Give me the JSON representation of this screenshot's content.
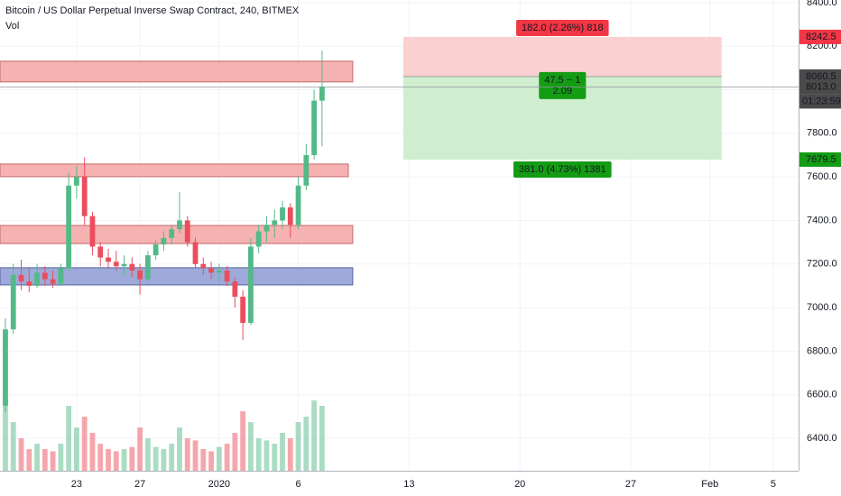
{
  "chart_data": {
    "type": "candlestick",
    "title": "Bitcoin / US Dollar Perpetual Inverse Swap Contract, 240, BITMEX",
    "volume_label": "Vol",
    "x": [
      -4.5,
      -4,
      -3.5,
      -3,
      -2.5,
      -2,
      -1.5,
      -1,
      -0.5,
      0,
      0.5,
      1,
      1.5,
      2,
      2.5,
      3,
      3.5,
      4,
      4.5,
      5,
      5.5,
      6,
      6.5,
      7,
      7.5,
      8,
      8.5,
      9,
      9.5,
      10,
      10.5,
      11,
      11.5,
      12,
      12.5,
      13,
      13.5,
      14,
      14.5,
      15,
      15.5
    ],
    "open": [
      6550,
      6900,
      7150,
      7120,
      7100,
      7160,
      7130,
      7110,
      7180,
      7560,
      7600,
      7420,
      7280,
      7230,
      7210,
      7190,
      7200,
      7170,
      7130,
      7240,
      7290,
      7320,
      7360,
      7400,
      7300,
      7200,
      7180,
      7160,
      7170,
      7120,
      7050,
      6930,
      7280,
      7350,
      7380,
      7400,
      7460,
      7380,
      7560,
      7700,
      7950
    ],
    "high": [
      6950,
      7200,
      7220,
      7180,
      7200,
      7190,
      7170,
      7200,
      7620,
      7650,
      7690,
      7440,
      7300,
      7270,
      7260,
      7240,
      7230,
      7200,
      7260,
      7310,
      7350,
      7380,
      7530,
      7420,
      7320,
      7230,
      7210,
      7200,
      7190,
      7140,
      7080,
      7320,
      7380,
      7420,
      7450,
      7490,
      7480,
      7600,
      7750,
      8000,
      8180
    ],
    "low": [
      6520,
      6880,
      7080,
      7070,
      7090,
      7100,
      7090,
      7100,
      7170,
      7500,
      7380,
      7240,
      7190,
      7180,
      7170,
      7150,
      7140,
      7060,
      7120,
      7220,
      7260,
      7290,
      7340,
      7280,
      7180,
      7150,
      7130,
      7120,
      7100,
      7000,
      6850,
      6920,
      7250,
      7300,
      7320,
      7360,
      7320,
      7360,
      7540,
      7680,
      7740
    ],
    "close": [
      6900,
      7150,
      7120,
      7100,
      7160,
      7130,
      7110,
      7180,
      7560,
      7600,
      7420,
      7280,
      7230,
      7210,
      7190,
      7200,
      7170,
      7130,
      7240,
      7290,
      7320,
      7360,
      7400,
      7300,
      7200,
      7180,
      7160,
      7170,
      7120,
      7050,
      6930,
      7280,
      7350,
      7380,
      7400,
      7460,
      7380,
      7560,
      7700,
      7950,
      8013
    ],
    "volume": [
      70,
      45,
      30,
      20,
      25,
      20,
      18,
      25,
      60,
      40,
      50,
      35,
      25,
      20,
      18,
      20,
      22,
      40,
      30,
      22,
      20,
      25,
      40,
      30,
      28,
      20,
      18,
      22,
      25,
      35,
      55,
      45,
      30,
      28,
      25,
      35,
      30,
      45,
      50,
      65,
      60
    ],
    "volume_ylim": [
      0,
      100
    ],
    "up_color": "#53b987",
    "down_color": "#eb4d5c",
    "xlim": [
      -4.84,
      45.6
    ],
    "ylim": [
      6251,
      8412
    ],
    "xticks": [
      {
        "value": 0,
        "label": "23"
      },
      {
        "value": 4,
        "label": "27"
      },
      {
        "value": 9,
        "label": "2020"
      },
      {
        "value": 14,
        "label": "6"
      },
      {
        "value": 21,
        "label": "13"
      },
      {
        "value": 28,
        "label": "20"
      },
      {
        "value": 35,
        "label": "27"
      },
      {
        "value": 40,
        "label": "Feb"
      },
      {
        "value": 44,
        "label": "5"
      }
    ],
    "yticks": [
      {
        "value": 8400,
        "label": "8400.0"
      },
      {
        "value": 8200,
        "label": "8200.0"
      },
      {
        "value": 8000,
        "label": "8000.0"
      },
      {
        "value": 7800,
        "label": "7800.0"
      },
      {
        "value": 7600,
        "label": "7600.0"
      },
      {
        "value": 7400,
        "label": "7400.0"
      },
      {
        "value": 7200,
        "label": "7200.0"
      },
      {
        "value": 7000,
        "label": "7000.0"
      },
      {
        "value": 6800,
        "label": "6800.0"
      },
      {
        "value": 6600,
        "label": "6600.0"
      },
      {
        "value": 6400,
        "label": "6400.0"
      }
    ],
    "grid": true,
    "zones": [
      {
        "xlim": [
          -4.84,
          17.44
        ],
        "ylim": [
          8036,
          8131
        ],
        "color": "#f5a3a3",
        "border": "#c46a6a"
      },
      {
        "xlim": [
          -4.84,
          17.16
        ],
        "ylim": [
          7601,
          7659
        ],
        "color": "#f5a3a3",
        "border": "#c46a6a"
      },
      {
        "xlim": [
          -4.84,
          17.44
        ],
        "ylim": [
          7294,
          7377
        ],
        "color": "#f5a3a3",
        "border": "#c46a6a"
      },
      {
        "xlim": [
          -4.84,
          17.44
        ],
        "ylim": [
          7104,
          7183
        ],
        "color": "#8c9bd2",
        "border": "#5a639e"
      }
    ],
    "position": {
      "xlim": [
        20.63,
        40.74
      ],
      "stop": 8242.5,
      "entry": 8060.5,
      "target": 7679.5,
      "stop_color": "#fbd0d0",
      "target_color": "#cfeecf",
      "stop_label": "182.0 (2.26%) 818",
      "ratio_label": [
        "47.5 ~ 1",
        "2.09"
      ],
      "target_label": "381.0 (4.73%) 1381",
      "stop_label_color": "#f23645",
      "target_label_color": "#149c14"
    },
    "price_tags": [
      {
        "value": 8242.5,
        "color": "#f23645"
      },
      {
        "value": 8060.5,
        "color": "#4a4a4a"
      },
      {
        "value": 8013,
        "label": "8013.0",
        "color": "#4a4a4a"
      },
      {
        "value": 7679.5,
        "color": "#149c14"
      }
    ],
    "countdown": "01:23:59"
  }
}
